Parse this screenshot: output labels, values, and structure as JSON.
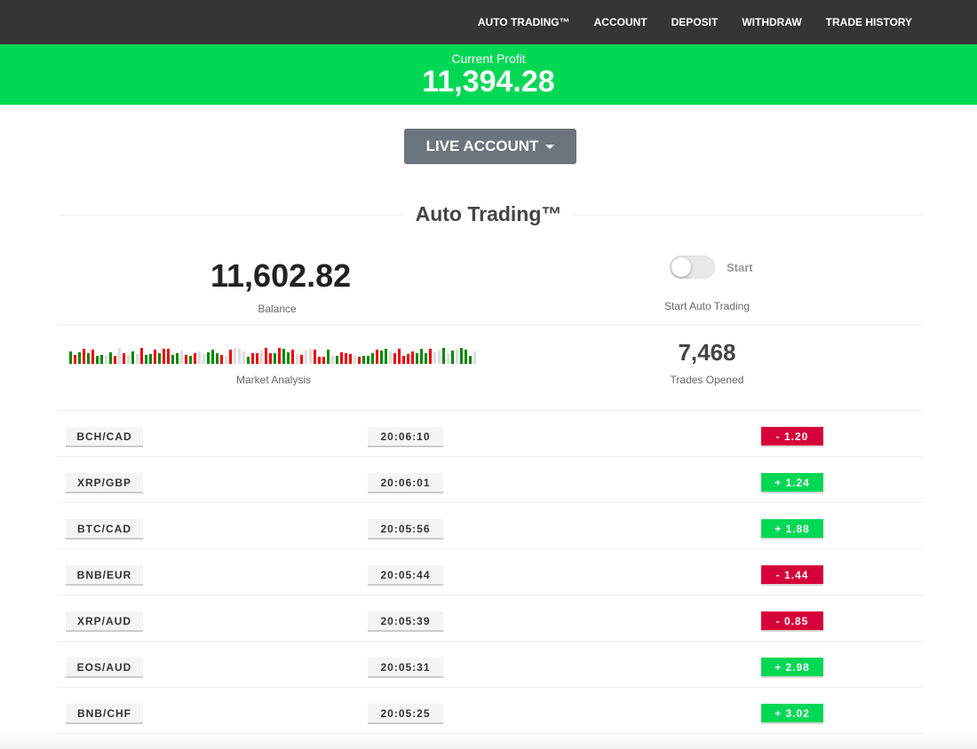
{
  "nav": {
    "items": [
      "AUTO TRADING™",
      "ACCOUNT",
      "DEPOSIT",
      "WITHDRAW",
      "TRADE HISTORY"
    ]
  },
  "profit": {
    "label": "Current Profit",
    "value": "11,394.28"
  },
  "account_button": "LIVE ACCOUNT",
  "section_title": "Auto Trading™",
  "balance": {
    "value": "11,602.82",
    "label": "Balance"
  },
  "toggle": {
    "label": "Start",
    "caption": "Start Auto Trading",
    "on": false
  },
  "market": {
    "label": "Market Analysis"
  },
  "trades_opened": {
    "value": "7,468",
    "label": "Trades Opened"
  },
  "colors": {
    "up": "#00d855",
    "down": "#d6003a",
    "nav": "#353535",
    "button": "#6c757d"
  },
  "trades": [
    {
      "pair": "BCH/CAD",
      "time": "20:06:10",
      "change": "-  1.20",
      "dir": "down"
    },
    {
      "pair": "XRP/GBP",
      "time": "20:06:01",
      "change": "+  1.24",
      "dir": "up"
    },
    {
      "pair": "BTC/CAD",
      "time": "20:05:56",
      "change": "+  1.88",
      "dir": "up"
    },
    {
      "pair": "BNB/EUR",
      "time": "20:05:44",
      "change": "-  1.44",
      "dir": "down"
    },
    {
      "pair": "XRP/AUD",
      "time": "20:05:39",
      "change": "-  0.85",
      "dir": "down"
    },
    {
      "pair": "EOS/AUD",
      "time": "20:05:31",
      "change": "+  2.98",
      "dir": "up"
    },
    {
      "pair": "BNB/CHF",
      "time": "20:05:25",
      "change": "+  3.02",
      "dir": "up"
    }
  ]
}
